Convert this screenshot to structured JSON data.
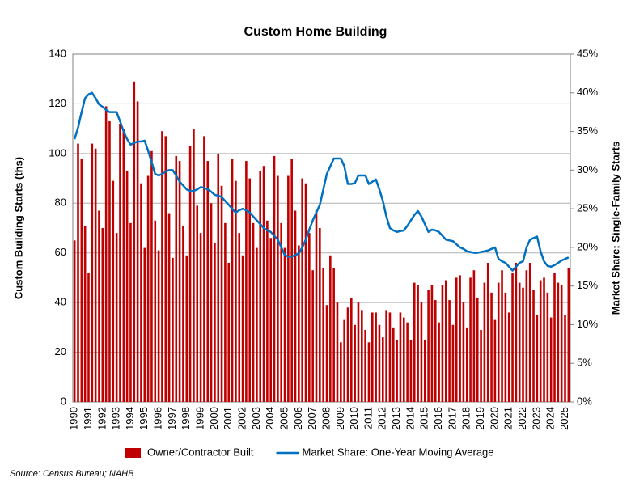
{
  "chart_data": {
    "type": "bar",
    "title": "Custom Home Building",
    "ylabel": "Custom Building Starts (ths)",
    "y2label": "Market Share: Single-Family Starts",
    "source": "Source: Census Bureau; NAHB",
    "categories": [
      "1990",
      null,
      null,
      null,
      "1991",
      null,
      null,
      null,
      "1992",
      null,
      null,
      null,
      "1993",
      null,
      null,
      null,
      "1994",
      null,
      null,
      null,
      "1995",
      null,
      null,
      null,
      "1996",
      null,
      null,
      null,
      "1997",
      null,
      null,
      null,
      "1998",
      null,
      null,
      null,
      "1999",
      null,
      null,
      null,
      "2000",
      null,
      null,
      null,
      "2001",
      null,
      null,
      null,
      "2002",
      null,
      null,
      null,
      "2003",
      null,
      null,
      null,
      "2004",
      null,
      null,
      null,
      "2005",
      null,
      null,
      null,
      "2006",
      null,
      null,
      null,
      "2007",
      null,
      null,
      null,
      "2008",
      null,
      null,
      null,
      "2009",
      null,
      null,
      null,
      "2010",
      null,
      null,
      null,
      "2011",
      null,
      null,
      null,
      "2012",
      null,
      null,
      null,
      "2013",
      null,
      null,
      null,
      "2014",
      null,
      null,
      null,
      "2015",
      null,
      null,
      null,
      "2016",
      null,
      null,
      null,
      "2017",
      null,
      null,
      null,
      "2018",
      null,
      null,
      null,
      "2019",
      null,
      null,
      null,
      "2020",
      null,
      null,
      null,
      "2021",
      null,
      null,
      null,
      "2022",
      null,
      null,
      null,
      "2023",
      null,
      null,
      null,
      "2024",
      null,
      null,
      null,
      "2025",
      null
    ],
    "series": [
      {
        "name": "Owner/Contractor Built",
        "type": "bar",
        "axis": "y",
        "color": "#c00000",
        "values": [
          65,
          104,
          98,
          71,
          52,
          104,
          102,
          77,
          70,
          119,
          113,
          89,
          68,
          112,
          110,
          93,
          72,
          129,
          121,
          88,
          62,
          91,
          101,
          73,
          61,
          109,
          107,
          76,
          58,
          99,
          97,
          71,
          59,
          103,
          110,
          79,
          68,
          107,
          97,
          80,
          64,
          100,
          87,
          72,
          56,
          98,
          89,
          68,
          59,
          97,
          90,
          72,
          62,
          93,
          95,
          73,
          66,
          99,
          91,
          72,
          62,
          91,
          98,
          77,
          63,
          90,
          88,
          68,
          53,
          77,
          70,
          54,
          39,
          59,
          54,
          40,
          24,
          33,
          38,
          42,
          31,
          40,
          37,
          29,
          24,
          36,
          36,
          31,
          26,
          37,
          36,
          30,
          25,
          36,
          34,
          32,
          25,
          48,
          47,
          40,
          25,
          45,
          47,
          41,
          32,
          47,
          49,
          41,
          31,
          50,
          51,
          40,
          30,
          50,
          53,
          42,
          29,
          48,
          56,
          44,
          33,
          48,
          53,
          44,
          36,
          52,
          56,
          48,
          46,
          53,
          56,
          45,
          35,
          49,
          50,
          44,
          34,
          52,
          48,
          47,
          35,
          54
        ]
      },
      {
        "name": "Market Share: One-Year Moving Average",
        "type": "line",
        "axis": "y2",
        "color": "#0070c0",
        "values": [
          34,
          35.5,
          37.5,
          39.3,
          39.8,
          40,
          39.3,
          38.5,
          38.2,
          37.8,
          37.5,
          37.5,
          37.5,
          36.3,
          35,
          34,
          33.3,
          33.5,
          33.7,
          33.7,
          33.8,
          32.5,
          31,
          29.5,
          29.3,
          29.5,
          29.8,
          30,
          30,
          29.3,
          28.5,
          28,
          27.5,
          27.3,
          27.3,
          27.5,
          27.8,
          27.7,
          27.5,
          27.2,
          26.8,
          26.7,
          26.5,
          26,
          25.5,
          25,
          24.5,
          24.8,
          25,
          24.8,
          24.5,
          24,
          23.5,
          23,
          22.5,
          22.2,
          22,
          21.5,
          21,
          20,
          19,
          18.8,
          18.8,
          19,
          19.2,
          20,
          21,
          22.3,
          23.5,
          24.5,
          25.5,
          27.5,
          29.5,
          30.5,
          31.5,
          31.5,
          31.5,
          30.5,
          28.2,
          28.2,
          28.3,
          29.3,
          29.3,
          29.3,
          28.2,
          28.5,
          28.8,
          27.5,
          26,
          24,
          22.5,
          22.2,
          22,
          22.1,
          22.2,
          22.8,
          23.5,
          24.2,
          24.7,
          24,
          23,
          22,
          22.3,
          22.2,
          22,
          21.5,
          21,
          20.9,
          20.8,
          20.4,
          20,
          19.8,
          19.5,
          19.4,
          19.3,
          19.3,
          19.4,
          19.5,
          19.6,
          19.8,
          20,
          18.5,
          18.2,
          18,
          17.5,
          17,
          17.5,
          18,
          18.2,
          20,
          21,
          21.2,
          21.4,
          19.5,
          18.2,
          17.6,
          17.5,
          17.7,
          18,
          18.3,
          18.5,
          18.7
        ]
      }
    ],
    "ylim": [
      0,
      140
    ],
    "yticks": [
      0,
      20,
      40,
      60,
      80,
      100,
      120,
      140
    ],
    "y2lim": [
      0,
      45
    ],
    "y2ticks": [
      {
        "value": 0,
        "label": "0%"
      },
      {
        "value": 5,
        "label": "5%"
      },
      {
        "value": 10,
        "label": "10%"
      },
      {
        "value": 15,
        "label": "15%"
      },
      {
        "value": 20,
        "label": "20%"
      },
      {
        "value": 25,
        "label": "25%"
      },
      {
        "value": 30,
        "label": "30%"
      },
      {
        "value": 35,
        "label": "35%"
      },
      {
        "value": 40,
        "label": "40%"
      },
      {
        "value": 45,
        "label": "45%"
      }
    ],
    "grid": true,
    "legend": "bottom"
  }
}
